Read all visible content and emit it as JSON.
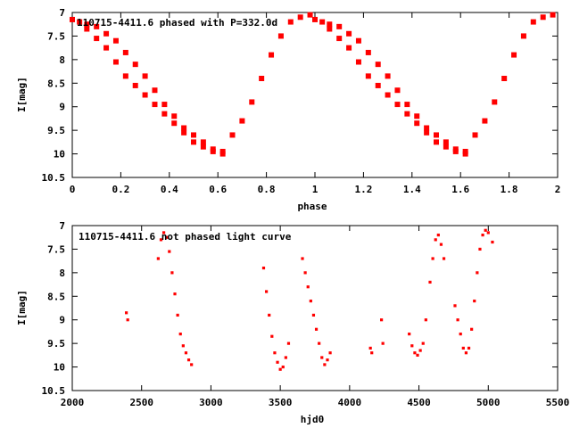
{
  "chart_data": [
    {
      "type": "scatter",
      "title": "110715-4411.6 phased with P=332.0d",
      "xlabel": "phase",
      "ylabel": "I[mag]",
      "xlim": [
        0,
        2
      ],
      "ylim": [
        10.5,
        7
      ],
      "y_inverted": true,
      "x_ticks": [
        "0",
        "0.2",
        "0.4",
        "0.6",
        "0.8",
        "1",
        "1.2",
        "1.4",
        "1.6",
        "1.8",
        "2"
      ],
      "y_ticks": [
        "7",
        "7.5",
        "8",
        "8.5",
        "9",
        "9.5",
        "10",
        "10.5"
      ],
      "marker_color": "#ff0000",
      "series": [
        {
          "x": [
            0.0,
            0.03,
            0.06,
            0.1,
            0.14,
            0.18,
            0.22,
            0.26,
            0.3,
            0.34,
            0.38,
            0.42,
            0.46,
            0.5,
            0.54,
            0.58,
            0.62,
            0.66,
            0.7,
            0.74,
            0.78,
            0.82,
            0.86,
            0.9,
            0.94,
            0.98,
            1.0,
            1.03,
            1.06,
            1.1,
            1.14,
            1.18,
            1.22,
            1.26,
            1.3,
            1.34,
            1.38,
            1.42,
            1.46,
            1.5,
            1.54,
            1.58,
            1.62,
            1.66,
            1.7,
            1.74,
            1.78,
            1.82,
            1.86,
            1.9,
            1.94,
            1.98
          ],
          "y": [
            7.15,
            7.2,
            7.25,
            7.3,
            7.45,
            7.6,
            7.85,
            8.1,
            8.35,
            8.65,
            8.95,
            9.2,
            9.45,
            9.6,
            9.75,
            9.9,
            9.95,
            9.6,
            9.3,
            8.9,
            8.4,
            7.9,
            7.5,
            7.2,
            7.1,
            7.05,
            7.15,
            7.2,
            7.25,
            7.3,
            7.45,
            7.6,
            7.85,
            8.1,
            8.35,
            8.65,
            8.95,
            9.2,
            9.45,
            9.6,
            9.75,
            9.9,
            9.95,
            9.6,
            9.3,
            8.9,
            8.4,
            7.9,
            7.5,
            7.2,
            7.1,
            7.05
          ]
        },
        {
          "x": [
            0.06,
            0.1,
            0.14,
            0.18,
            0.22,
            0.26,
            0.3,
            0.34,
            0.38,
            0.42,
            0.46,
            0.5,
            0.54,
            0.58,
            0.62,
            1.06,
            1.1,
            1.14,
            1.18,
            1.22,
            1.26,
            1.3,
            1.34,
            1.38,
            1.42,
            1.46,
            1.5,
            1.54,
            1.58,
            1.62
          ],
          "y": [
            7.35,
            7.55,
            7.75,
            8.05,
            8.35,
            8.55,
            8.75,
            8.95,
            9.15,
            9.35,
            9.55,
            9.75,
            9.85,
            9.95,
            10.0,
            7.35,
            7.55,
            7.75,
            8.05,
            8.35,
            8.55,
            8.75,
            8.95,
            9.15,
            9.35,
            9.55,
            9.75,
            9.85,
            9.95,
            10.0
          ]
        }
      ]
    },
    {
      "type": "scatter",
      "title": "110715-4411.6 not phased light curve",
      "xlabel": "hjd0",
      "ylabel": "I[mag]",
      "xlim": [
        2000,
        5500
      ],
      "ylim": [
        10.5,
        7
      ],
      "y_inverted": true,
      "x_ticks": [
        "2000",
        "2500",
        "3000",
        "3500",
        "4000",
        "4500",
        "5000",
        "5500"
      ],
      "y_ticks": [
        "7",
        "7.5",
        "8",
        "8.5",
        "9",
        "9.5",
        "10",
        "10.5"
      ],
      "marker_color": "#ff0000",
      "series": [
        {
          "x": [
            2390,
            2400,
            2620,
            2640,
            2660,
            2680,
            2700,
            2720,
            2740,
            2760,
            2780,
            2800,
            2820,
            2840,
            2860,
            3380,
            3400,
            3420,
            3440,
            3460,
            3480,
            3500,
            3520,
            3540,
            3560,
            3660,
            3680,
            3700,
            3720,
            3740,
            3760,
            3780,
            3800,
            3820,
            3840,
            3860,
            4150,
            4160,
            4230,
            4240,
            4430,
            4450,
            4470,
            4490,
            4510,
            4530,
            4550,
            4580,
            4600,
            4620,
            4640,
            4660,
            4680,
            4760,
            4780,
            4800,
            4820,
            4840,
            4860,
            4880,
            4900,
            4920,
            4940,
            4960,
            4980,
            5000,
            5030
          ],
          "y": [
            8.85,
            9.0,
            7.7,
            7.3,
            7.15,
            7.25,
            7.55,
            8.0,
            8.45,
            8.9,
            9.3,
            9.55,
            9.7,
            9.85,
            9.95,
            7.9,
            8.4,
            8.9,
            9.35,
            9.7,
            9.9,
            10.05,
            10.0,
            9.8,
            9.5,
            7.7,
            8.0,
            8.3,
            8.6,
            8.9,
            9.2,
            9.5,
            9.8,
            9.95,
            9.85,
            9.7,
            9.6,
            9.7,
            9.0,
            9.5,
            9.3,
            9.55,
            9.7,
            9.75,
            9.65,
            9.5,
            9.0,
            8.2,
            7.7,
            7.3,
            7.2,
            7.4,
            7.7,
            8.7,
            9.0,
            9.3,
            9.6,
            9.7,
            9.6,
            9.2,
            8.6,
            8.0,
            7.5,
            7.2,
            7.1,
            7.15,
            7.35
          ]
        }
      ]
    }
  ]
}
